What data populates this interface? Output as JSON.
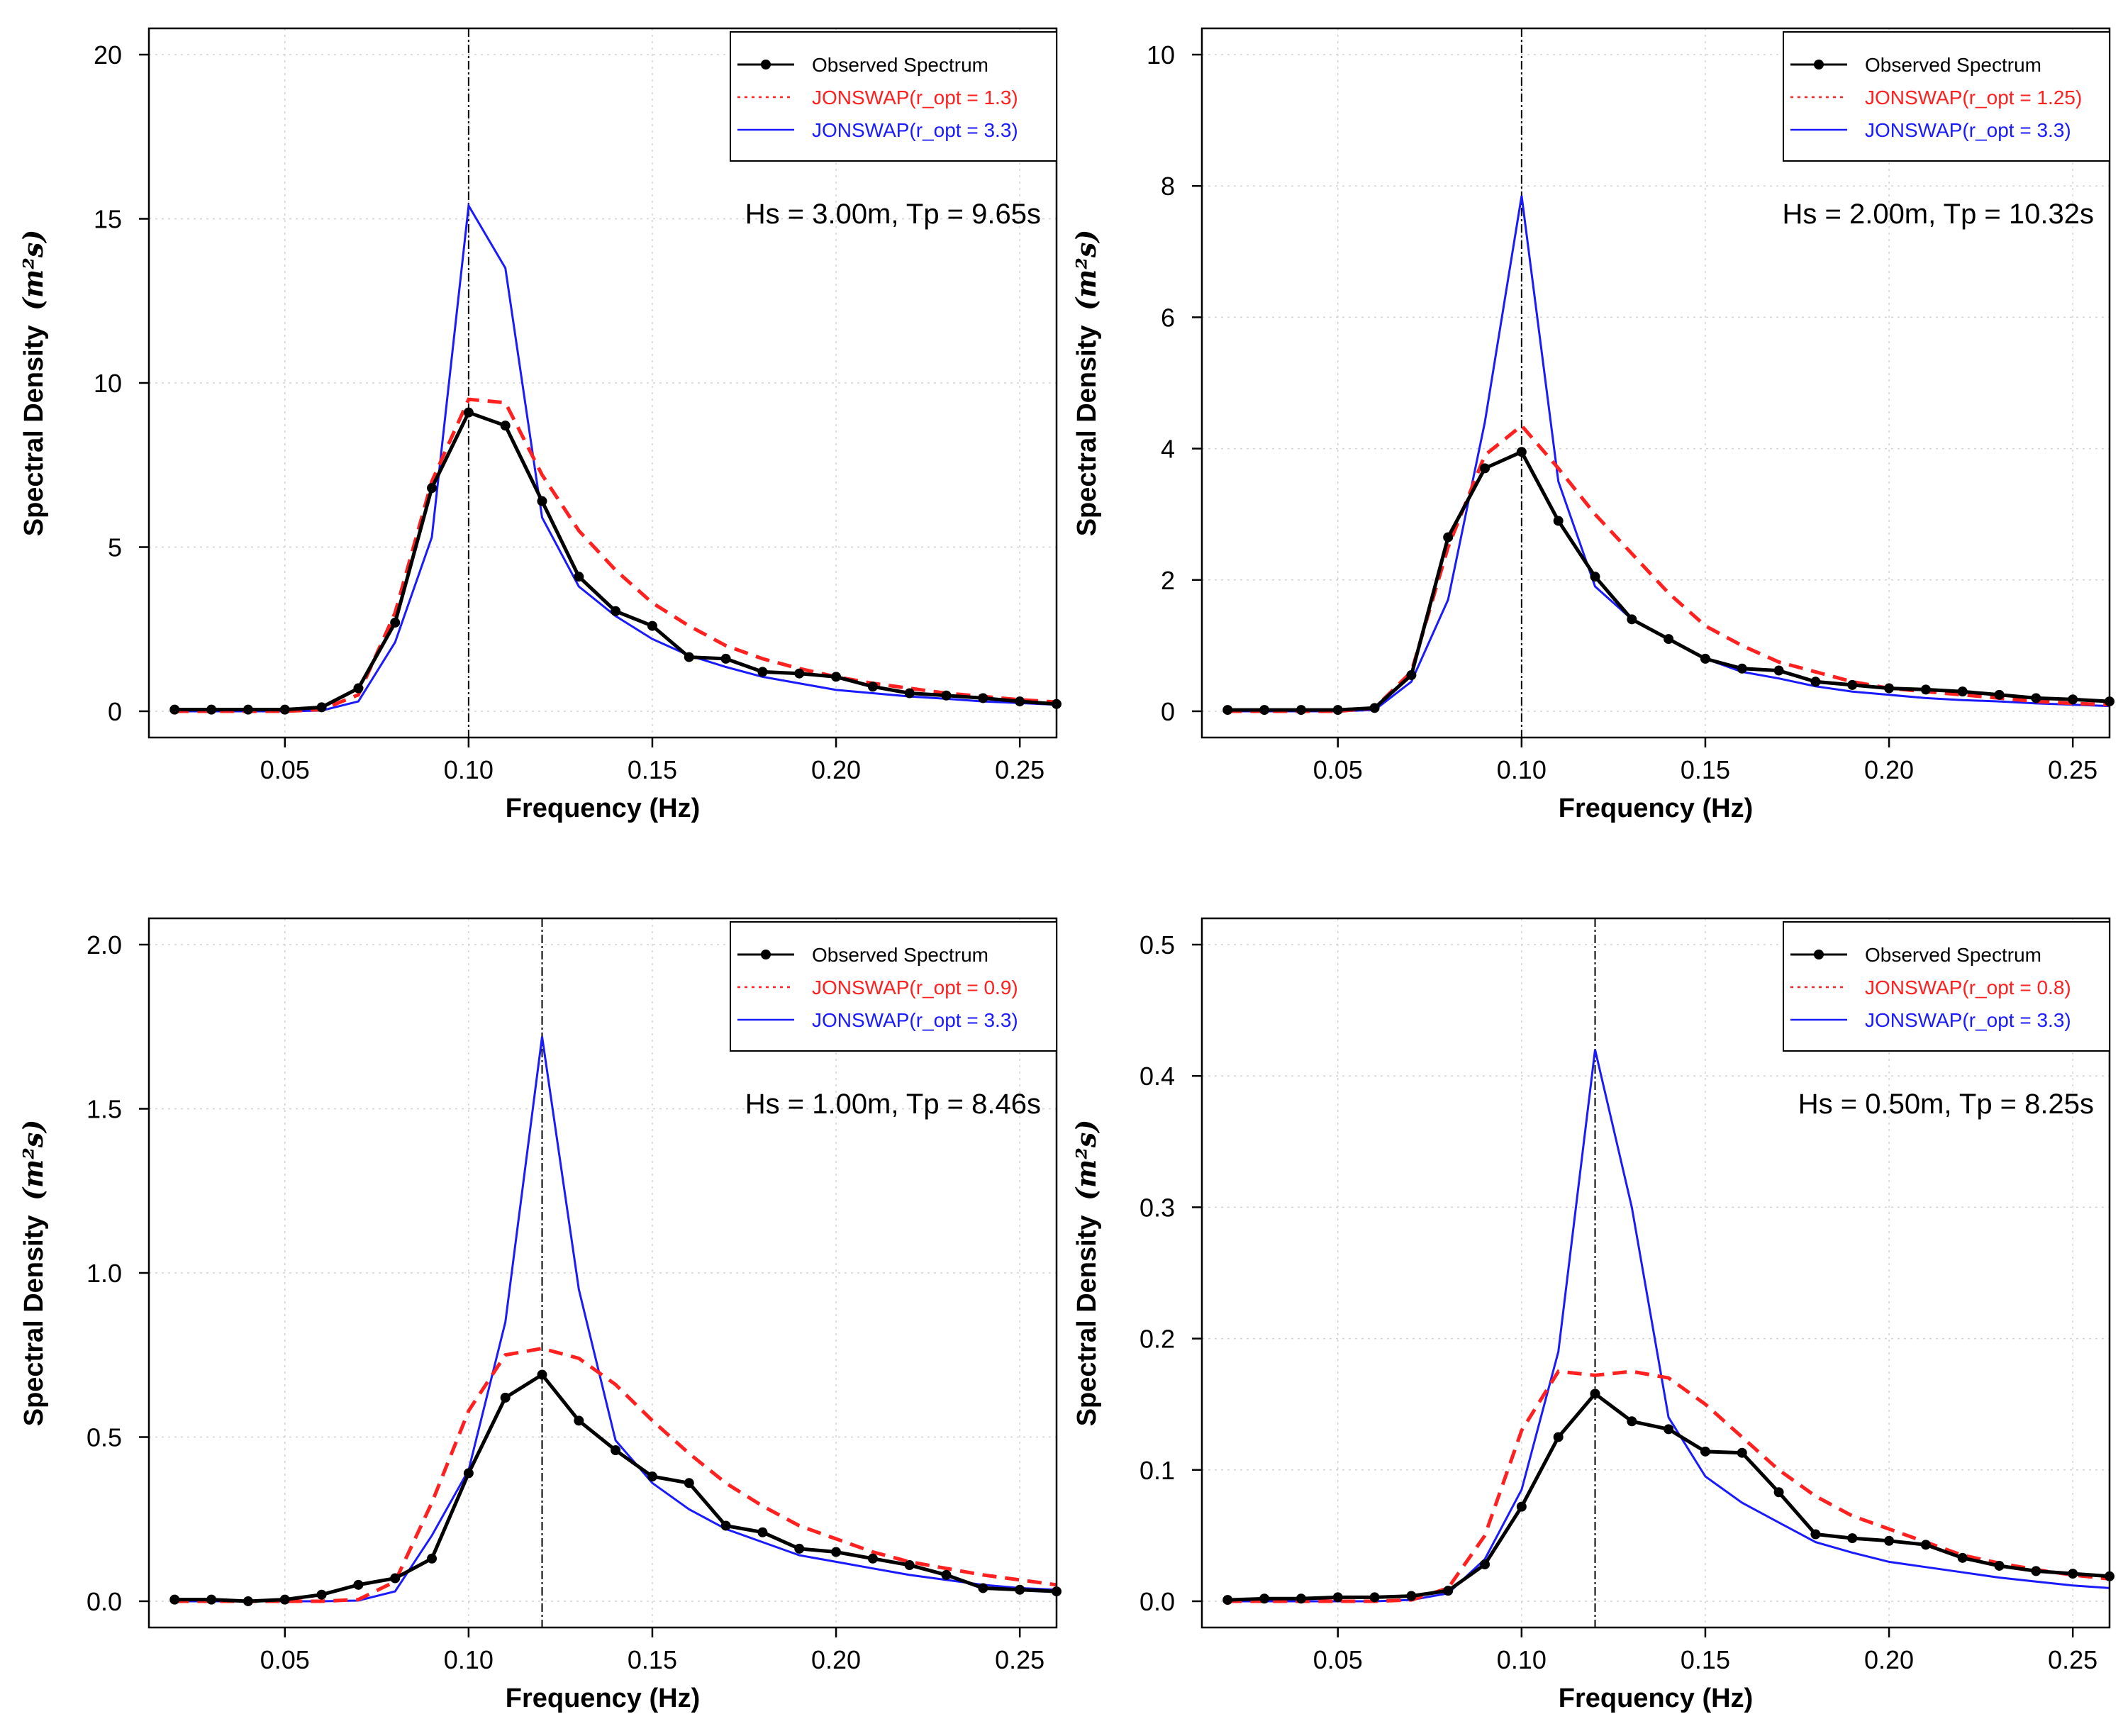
{
  "chart_data": [
    {
      "type": "line",
      "xlabel": "Frequency (Hz)",
      "ylabel": "Spectral Density",
      "ylabel_unit": "(m²s)",
      "xlim": [
        0.013,
        0.26
      ],
      "ylim": [
        -0.8,
        20.8
      ],
      "xticks": [
        0.05,
        0.1,
        0.15,
        0.2,
        0.25
      ],
      "xtick_labels": [
        "0.05",
        "0.10",
        "0.15",
        "0.20",
        "0.25"
      ],
      "yticks": [
        0,
        5,
        10,
        15,
        20
      ],
      "ytick_labels": [
        "0",
        "5",
        "10",
        "15",
        "20"
      ],
      "peak_x": 0.1,
      "annotation": "Hs = 3.00m,  Tp = 9.65s",
      "legend": [
        "Observed Spectrum",
        "JONSWAP(r_opt = 1.3)",
        "JONSWAP(r_opt = 3.3)"
      ],
      "x": [
        0.02,
        0.03,
        0.04,
        0.05,
        0.06,
        0.07,
        0.08,
        0.09,
        0.1,
        0.11,
        0.12,
        0.13,
        0.14,
        0.15,
        0.16,
        0.17,
        0.18,
        0.19,
        0.2,
        0.21,
        0.22,
        0.23,
        0.24,
        0.25,
        0.26
      ],
      "series": [
        {
          "name": "Observed Spectrum",
          "values": [
            0.05,
            0.05,
            0.05,
            0.05,
            0.12,
            0.7,
            2.7,
            6.8,
            9.1,
            8.7,
            6.4,
            4.1,
            3.05,
            2.6,
            1.65,
            1.6,
            1.2,
            1.15,
            1.05,
            0.75,
            0.55,
            0.48,
            0.4,
            0.3,
            0.22
          ]
        },
        {
          "name": "JONSWAP(r_opt = 1.3)",
          "values": [
            0,
            0,
            0,
            0,
            0.05,
            0.5,
            3.0,
            7.0,
            9.5,
            9.4,
            7.2,
            5.5,
            4.3,
            3.3,
            2.6,
            2.0,
            1.6,
            1.3,
            1.05,
            0.85,
            0.7,
            0.55,
            0.45,
            0.35,
            0.28
          ]
        },
        {
          "name": "JONSWAP(r_opt = 3.3)",
          "values": [
            0,
            0,
            0,
            0,
            0.02,
            0.3,
            2.1,
            5.3,
            15.4,
            13.5,
            5.9,
            3.8,
            2.9,
            2.2,
            1.7,
            1.35,
            1.05,
            0.85,
            0.65,
            0.55,
            0.45,
            0.38,
            0.3,
            0.25,
            0.2
          ]
        }
      ]
    },
    {
      "type": "line",
      "xlabel": "Frequency (Hz)",
      "ylabel": "Spectral Density",
      "ylabel_unit": "(m²s)",
      "xlim": [
        0.013,
        0.26
      ],
      "ylim": [
        -0.4,
        10.4
      ],
      "xticks": [
        0.05,
        0.1,
        0.15,
        0.2,
        0.25
      ],
      "xtick_labels": [
        "0.05",
        "0.10",
        "0.15",
        "0.20",
        "0.25"
      ],
      "yticks": [
        0,
        2,
        4,
        6,
        8,
        10
      ],
      "ytick_labels": [
        "0",
        "2",
        "4",
        "6",
        "8",
        "10"
      ],
      "peak_x": 0.1,
      "annotation": "Hs = 2.00m,  Tp = 10.32s",
      "legend": [
        "Observed Spectrum",
        "JONSWAP(r_opt = 1.25)",
        "JONSWAP(r_opt = 3.3)"
      ],
      "x": [
        0.02,
        0.03,
        0.04,
        0.05,
        0.06,
        0.07,
        0.08,
        0.09,
        0.1,
        0.11,
        0.12,
        0.13,
        0.14,
        0.15,
        0.16,
        0.17,
        0.18,
        0.19,
        0.2,
        0.21,
        0.22,
        0.23,
        0.24,
        0.25,
        0.26
      ],
      "series": [
        {
          "name": "Observed Spectrum",
          "values": [
            0.02,
            0.02,
            0.02,
            0.02,
            0.05,
            0.55,
            2.65,
            3.7,
            3.95,
            2.9,
            2.05,
            1.4,
            1.1,
            0.8,
            0.65,
            0.62,
            0.45,
            0.4,
            0.35,
            0.33,
            0.3,
            0.25,
            0.2,
            0.18,
            0.15
          ]
        },
        {
          "name": "JONSWAP(r_opt = 1.25)",
          "values": [
            0,
            0,
            0,
            0,
            0.05,
            0.6,
            2.5,
            3.9,
            4.35,
            3.7,
            3.0,
            2.4,
            1.8,
            1.3,
            1.0,
            0.75,
            0.6,
            0.45,
            0.35,
            0.3,
            0.25,
            0.2,
            0.15,
            0.12,
            0.1
          ]
        },
        {
          "name": "JONSWAP(r_opt = 3.3)",
          "values": [
            0,
            0,
            0,
            0,
            0.02,
            0.45,
            1.7,
            4.4,
            7.85,
            3.5,
            1.9,
            1.4,
            1.1,
            0.8,
            0.6,
            0.5,
            0.38,
            0.3,
            0.25,
            0.2,
            0.17,
            0.15,
            0.12,
            0.1,
            0.08
          ]
        }
      ]
    },
    {
      "type": "line",
      "xlabel": "Frequency (Hz)",
      "ylabel": "Spectral Density",
      "ylabel_unit": "(m²s)",
      "xlim": [
        0.013,
        0.26
      ],
      "ylim": [
        -0.08,
        2.08
      ],
      "xticks": [
        0.05,
        0.1,
        0.15,
        0.2,
        0.25
      ],
      "xtick_labels": [
        "0.05",
        "0.10",
        "0.15",
        "0.20",
        "0.25"
      ],
      "yticks": [
        0.0,
        0.5,
        1.0,
        1.5,
        2.0
      ],
      "ytick_labels": [
        "0.0",
        "0.5",
        "1.0",
        "1.5",
        "2.0"
      ],
      "peak_x": 0.12,
      "annotation": "Hs = 1.00m,  Tp = 8.46s",
      "legend": [
        "Observed Spectrum",
        "JONSWAP(r_opt = 0.9)",
        "JONSWAP(r_opt = 3.3)"
      ],
      "x": [
        0.02,
        0.03,
        0.04,
        0.05,
        0.06,
        0.07,
        0.08,
        0.09,
        0.1,
        0.11,
        0.12,
        0.13,
        0.14,
        0.15,
        0.16,
        0.17,
        0.18,
        0.19,
        0.2,
        0.21,
        0.22,
        0.23,
        0.24,
        0.25,
        0.26
      ],
      "series": [
        {
          "name": "Observed Spectrum",
          "values": [
            0.005,
            0.005,
            0.0,
            0.005,
            0.02,
            0.05,
            0.07,
            0.13,
            0.39,
            0.62,
            0.69,
            0.55,
            0.46,
            0.38,
            0.36,
            0.23,
            0.21,
            0.16,
            0.15,
            0.13,
            0.11,
            0.08,
            0.04,
            0.035,
            0.03
          ]
        },
        {
          "name": "JONSWAP(r_opt = 0.9)",
          "values": [
            0,
            0,
            0,
            0,
            0.0,
            0.005,
            0.06,
            0.3,
            0.58,
            0.75,
            0.77,
            0.74,
            0.66,
            0.55,
            0.45,
            0.36,
            0.29,
            0.23,
            0.19,
            0.15,
            0.12,
            0.1,
            0.08,
            0.065,
            0.05
          ]
        },
        {
          "name": "JONSWAP(r_opt = 3.3)",
          "values": [
            0,
            0,
            0,
            0,
            0.0,
            0.002,
            0.03,
            0.2,
            0.4,
            0.85,
            1.72,
            0.95,
            0.49,
            0.36,
            0.28,
            0.22,
            0.18,
            0.14,
            0.12,
            0.1,
            0.08,
            0.065,
            0.05,
            0.04,
            0.035
          ]
        }
      ]
    },
    {
      "type": "line",
      "xlabel": "Frequency (Hz)",
      "ylabel": "Spectral Density",
      "ylabel_unit": "(m²s)",
      "xlim": [
        0.013,
        0.26
      ],
      "ylim": [
        -0.02,
        0.52
      ],
      "xticks": [
        0.05,
        0.1,
        0.15,
        0.2,
        0.25
      ],
      "xtick_labels": [
        "0.05",
        "0.10",
        "0.15",
        "0.20",
        "0.25"
      ],
      "yticks": [
        0.0,
        0.1,
        0.2,
        0.3,
        0.4,
        0.5
      ],
      "ytick_labels": [
        "0.0",
        "0.1",
        "0.2",
        "0.3",
        "0.4",
        "0.5"
      ],
      "peak_x": 0.12,
      "annotation": "Hs = 0.50m,  Tp = 8.25s",
      "legend": [
        "Observed Spectrum",
        "JONSWAP(r_opt = 0.8)",
        "JONSWAP(r_opt = 3.3)"
      ],
      "x": [
        0.02,
        0.03,
        0.04,
        0.05,
        0.06,
        0.07,
        0.08,
        0.09,
        0.1,
        0.11,
        0.12,
        0.13,
        0.14,
        0.15,
        0.16,
        0.17,
        0.18,
        0.19,
        0.2,
        0.21,
        0.22,
        0.23,
        0.24,
        0.25,
        0.26
      ],
      "series": [
        {
          "name": "Observed Spectrum",
          "values": [
            0.001,
            0.002,
            0.002,
            0.003,
            0.003,
            0.004,
            0.008,
            0.028,
            0.072,
            0.125,
            0.158,
            0.137,
            0.131,
            0.114,
            0.113,
            0.083,
            0.051,
            0.048,
            0.046,
            0.043,
            0.033,
            0.027,
            0.023,
            0.021,
            0.019
          ]
        },
        {
          "name": "JONSWAP(r_opt = 0.8)",
          "values": [
            0,
            0,
            0,
            0,
            0.0,
            0.001,
            0.01,
            0.05,
            0.13,
            0.175,
            0.172,
            0.175,
            0.17,
            0.15,
            0.125,
            0.1,
            0.08,
            0.065,
            0.055,
            0.045,
            0.035,
            0.029,
            0.024,
            0.02,
            0.017
          ]
        },
        {
          "name": "JONSWAP(r_opt = 3.3)",
          "values": [
            0,
            0,
            0,
            0,
            0.0,
            0.001,
            0.006,
            0.032,
            0.085,
            0.19,
            0.42,
            0.3,
            0.14,
            0.095,
            0.075,
            0.06,
            0.045,
            0.037,
            0.03,
            0.026,
            0.022,
            0.018,
            0.015,
            0.012,
            0.01
          ]
        }
      ]
    }
  ]
}
